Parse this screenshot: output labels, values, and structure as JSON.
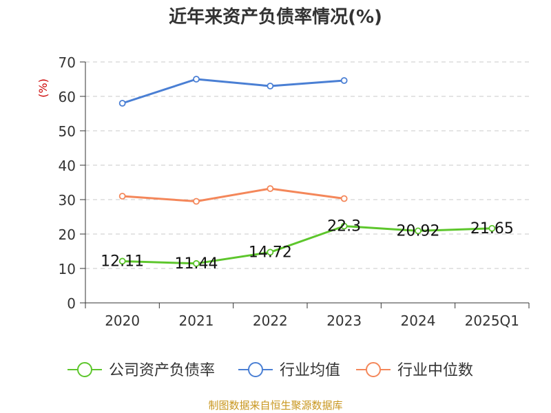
{
  "chart_data": {
    "type": "line",
    "title": "近年来资产负债率情况(%)",
    "ylabel": "(%)",
    "xlabel": "",
    "categories": [
      "2020",
      "2021",
      "2022",
      "2023",
      "2024",
      "2025Q1"
    ],
    "yticks": [
      "0",
      "10",
      "20",
      "30",
      "40",
      "50",
      "60",
      "70"
    ],
    "ylim": [
      0,
      70
    ],
    "grid": true,
    "legend_position": "bottom",
    "series": [
      {
        "name": "公司资产负债率",
        "color": "#5dc62c",
        "values": [
          12.11,
          11.44,
          14.72,
          22.3,
          20.92,
          21.65
        ],
        "labels": [
          "12.11",
          "11.44",
          "14.72",
          "22.3",
          "20.92",
          "21.65"
        ]
      },
      {
        "name": "行业均值",
        "color": "#4a7fd4",
        "values": [
          58.0,
          65.0,
          63.0,
          64.6,
          null,
          null
        ]
      },
      {
        "name": "行业中位数",
        "color": "#f4875a",
        "values": [
          31.0,
          29.5,
          33.2,
          30.3,
          null,
          null
        ]
      }
    ]
  },
  "footer": {
    "source": "制图数据来自恒生聚源数据库"
  }
}
